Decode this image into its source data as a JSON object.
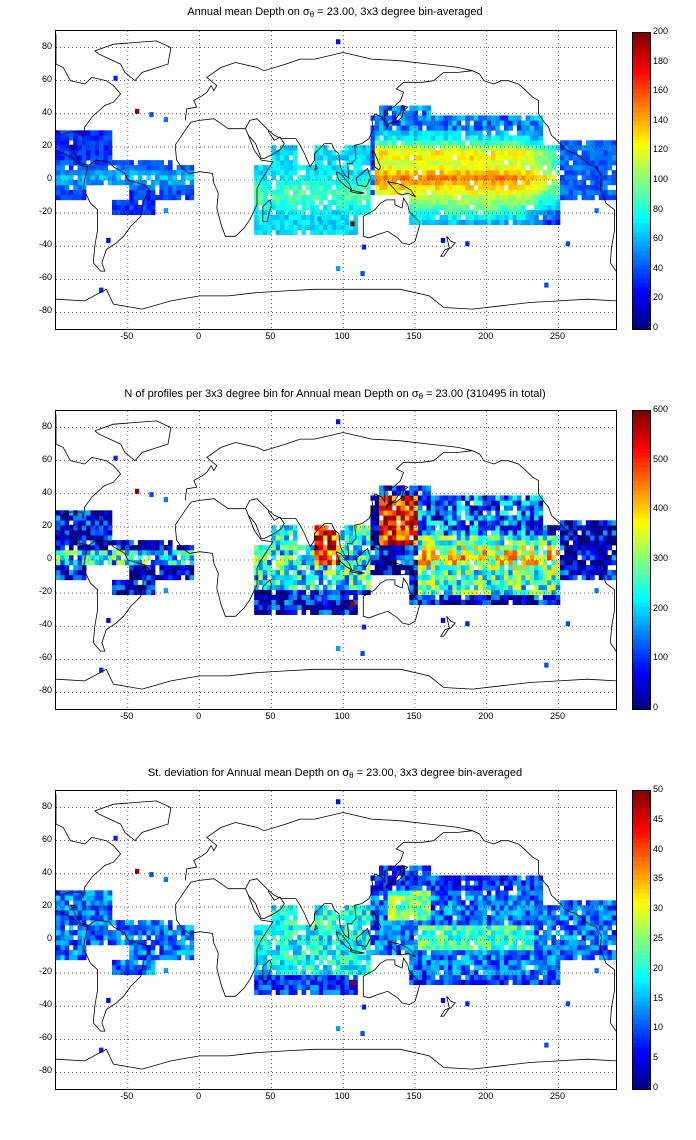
{
  "panels": [
    {
      "title_pre": "Annual mean Depth on σ",
      "title_sub": "θ",
      "title_post": " = 23.00, 3x3 degree bin-averaged",
      "colorbar": {
        "min": 0,
        "max": 200,
        "ticks": [
          "0",
          "20",
          "40",
          "60",
          "80",
          "100",
          "120",
          "140",
          "160",
          "180",
          "200"
        ]
      },
      "pattern": "depth"
    },
    {
      "title_pre": "N of profiles per 3x3 degree bin for Annual mean Depth on σ",
      "title_sub": "θ",
      "title_post": " = 23.00 (310495 in total)",
      "colorbar": {
        "min": 0,
        "max": 600,
        "ticks": [
          "0",
          "100",
          "200",
          "300",
          "400",
          "500",
          "600"
        ]
      },
      "pattern": "count"
    },
    {
      "title_pre": "St. deviation for Annual mean Depth on σ",
      "title_sub": "θ",
      "title_post": " = 23.00, 3x3 degree bin-averaged",
      "colorbar": {
        "min": 0,
        "max": 50,
        "ticks": [
          "0",
          "5",
          "10",
          "15",
          "20",
          "25",
          "30",
          "35",
          "40",
          "45",
          "50"
        ]
      },
      "pattern": "std"
    }
  ],
  "axes": {
    "x_ticks": [
      "-50",
      "0",
      "50",
      "100",
      "150",
      "200",
      "250"
    ],
    "x_values": [
      -50,
      0,
      50,
      100,
      150,
      200,
      250
    ],
    "x_range": [
      -100,
      290
    ],
    "y_ticks": [
      "80",
      "60",
      "40",
      "20",
      "0",
      "-20",
      "-40",
      "-60",
      "-80"
    ],
    "y_values": [
      80,
      60,
      40,
      20,
      0,
      -20,
      -40,
      -60,
      -80
    ],
    "y_range": [
      -90,
      90
    ]
  }
}
